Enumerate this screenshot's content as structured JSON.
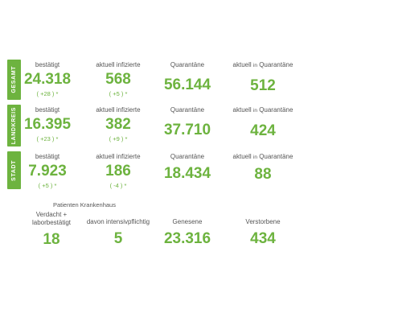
{
  "colors": {
    "accent": "#6db33f",
    "label": "#555555"
  },
  "sections": [
    {
      "tab": "GESAMT",
      "confirmed_label": "bestätigt",
      "confirmed": "24.318",
      "confirmed_delta": "( +28 ) *",
      "infected_label": "aktuell infizierte",
      "infected": "568",
      "infected_delta": "( +5 ) *",
      "quarantine_label": "Quarantäne",
      "quarantine": "56.144",
      "current_quarantine_prefix": "aktuell",
      "current_quarantine_mid": "in",
      "current_quarantine_suffix": "Quarantäne",
      "current_quarantine": "512"
    },
    {
      "tab": "LANDKREIS",
      "confirmed_label": "bestätigt",
      "confirmed": "16.395",
      "confirmed_delta": "( +23 ) *",
      "infected_label": "aktuell infizierte",
      "infected": "382",
      "infected_delta": "( +9 ) *",
      "quarantine_label": "Quarantäne",
      "quarantine": "37.710",
      "current_quarantine_prefix": "aktuell",
      "current_quarantine_mid": "in",
      "current_quarantine_suffix": "Quarantäne",
      "current_quarantine": "424"
    },
    {
      "tab": "STADT",
      "confirmed_label": "bestätigt",
      "confirmed": "7.923",
      "confirmed_delta": "( +5 ) *",
      "infected_label": "aktuell infizierte",
      "infected": "186",
      "infected_delta": "( -4 ) *",
      "quarantine_label": "Quarantäne",
      "quarantine": "18.434",
      "current_quarantine_prefix": "aktuell",
      "current_quarantine_mid": "in",
      "current_quarantine_suffix": "Quarantäne",
      "current_quarantine": "88"
    }
  ],
  "hospital": {
    "title": "Patienten Krankenhaus",
    "suspected_line1": "Verdacht +",
    "suspected_line2": "laborbestätigt",
    "suspected": "18",
    "intensive_label": "davon intensivpflichtig",
    "intensive": "5",
    "recovered_label": "Genesene",
    "recovered": "23.316",
    "deceased_label": "Verstorbene",
    "deceased": "434"
  }
}
